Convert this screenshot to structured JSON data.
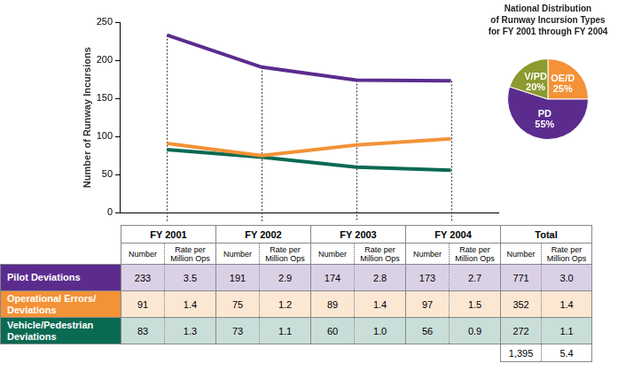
{
  "chart_data": [
    {
      "type": "line",
      "ylabel": "Number of Runway Incursions",
      "categories": [
        "FY 2001",
        "FY 2002",
        "FY 2003",
        "FY 2004"
      ],
      "series": [
        {
          "name": "Pilot Deviations",
          "color": "#5b2c8e",
          "values": [
            233,
            191,
            174,
            173
          ]
        },
        {
          "name": "Operational Errors/ Deviations",
          "color": "#f39237",
          "values": [
            91,
            75,
            89,
            97
          ]
        },
        {
          "name": "Vehicle/Pedestrian Deviations",
          "color": "#0b6a52",
          "values": [
            83,
            73,
            60,
            56
          ]
        }
      ],
      "ylim": [
        0,
        250
      ],
      "yticks": [
        0,
        50,
        100,
        150,
        200,
        250
      ],
      "grid": false,
      "tick_labels": "y",
      "marker": "none"
    },
    {
      "type": "pie",
      "title": "National Distribution\nof Runway Incursion Types\nfor FY 2001 through FY 2004",
      "categories": [
        "OE/D",
        "PD",
        "V/PD"
      ],
      "values": [
        25,
        55,
        20
      ],
      "value_labels": [
        "25%",
        "55%",
        "20%"
      ],
      "colors": [
        "#f39237",
        "#5b2c8e",
        "#8c9a30"
      ],
      "data_labels": true
    }
  ],
  "table": {
    "total_column": "Total",
    "subcolumns": [
      "Number",
      "Rate per Million Ops"
    ],
    "rows": [
      [
        "233",
        "3.5",
        "191",
        "2.9",
        "174",
        "2.8",
        "173",
        "2.7",
        "771",
        "3.0"
      ],
      [
        "91",
        "1.4",
        "75",
        "1.2",
        "89",
        "1.4",
        "97",
        "1.5",
        "352",
        "1.4"
      ],
      [
        "83",
        "1.3",
        "73",
        "1.1",
        "60",
        "1.0",
        "56",
        "0.9",
        "272",
        "1.1"
      ]
    ],
    "total_row": [
      "1,395",
      "5.4"
    ]
  }
}
